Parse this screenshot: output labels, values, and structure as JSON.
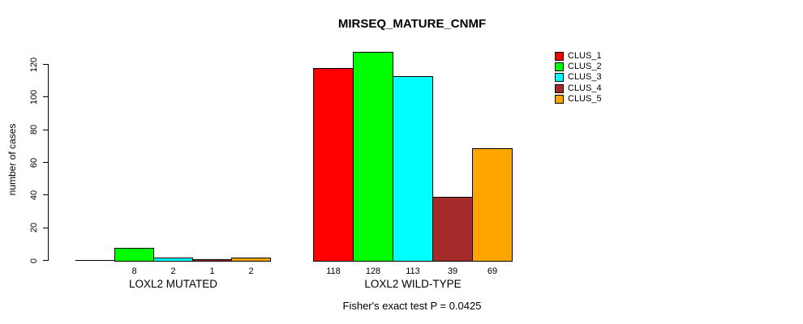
{
  "title": "MIRSEQ_MATURE_CNMF",
  "footer": "Fisher's exact test P = 0.0425",
  "background_color": "#ffffff",
  "chart_data": {
    "type": "bar",
    "title": "MIRSEQ_MATURE_CNMF",
    "xlabel": "",
    "ylabel": "number of cases",
    "ylim": [
      0,
      120
    ],
    "yticks": [
      0,
      20,
      40,
      60,
      80,
      100,
      120
    ],
    "grid": false,
    "legend_position": "top-right",
    "annotation": "Fisher's exact test P = 0.0425",
    "series": [
      {
        "name": "CLUS_1",
        "color": "#FF0000"
      },
      {
        "name": "CLUS_2",
        "color": "#00FF00"
      },
      {
        "name": "CLUS_3",
        "color": "#00FFFF"
      },
      {
        "name": "CLUS_4",
        "color": "#A52A2A"
      },
      {
        "name": "CLUS_5",
        "color": "#FFA500"
      }
    ],
    "groups": [
      {
        "label": "LOXL2 MUTATED",
        "values": [
          0,
          8,
          2,
          1,
          2
        ],
        "value_labels": [
          "",
          "8",
          "2",
          "1",
          "2"
        ]
      },
      {
        "label": "LOXL2 WILD-TYPE",
        "values": [
          118,
          128,
          113,
          39,
          69
        ],
        "value_labels": [
          "118",
          "128",
          "113",
          "39",
          "69"
        ]
      }
    ]
  }
}
